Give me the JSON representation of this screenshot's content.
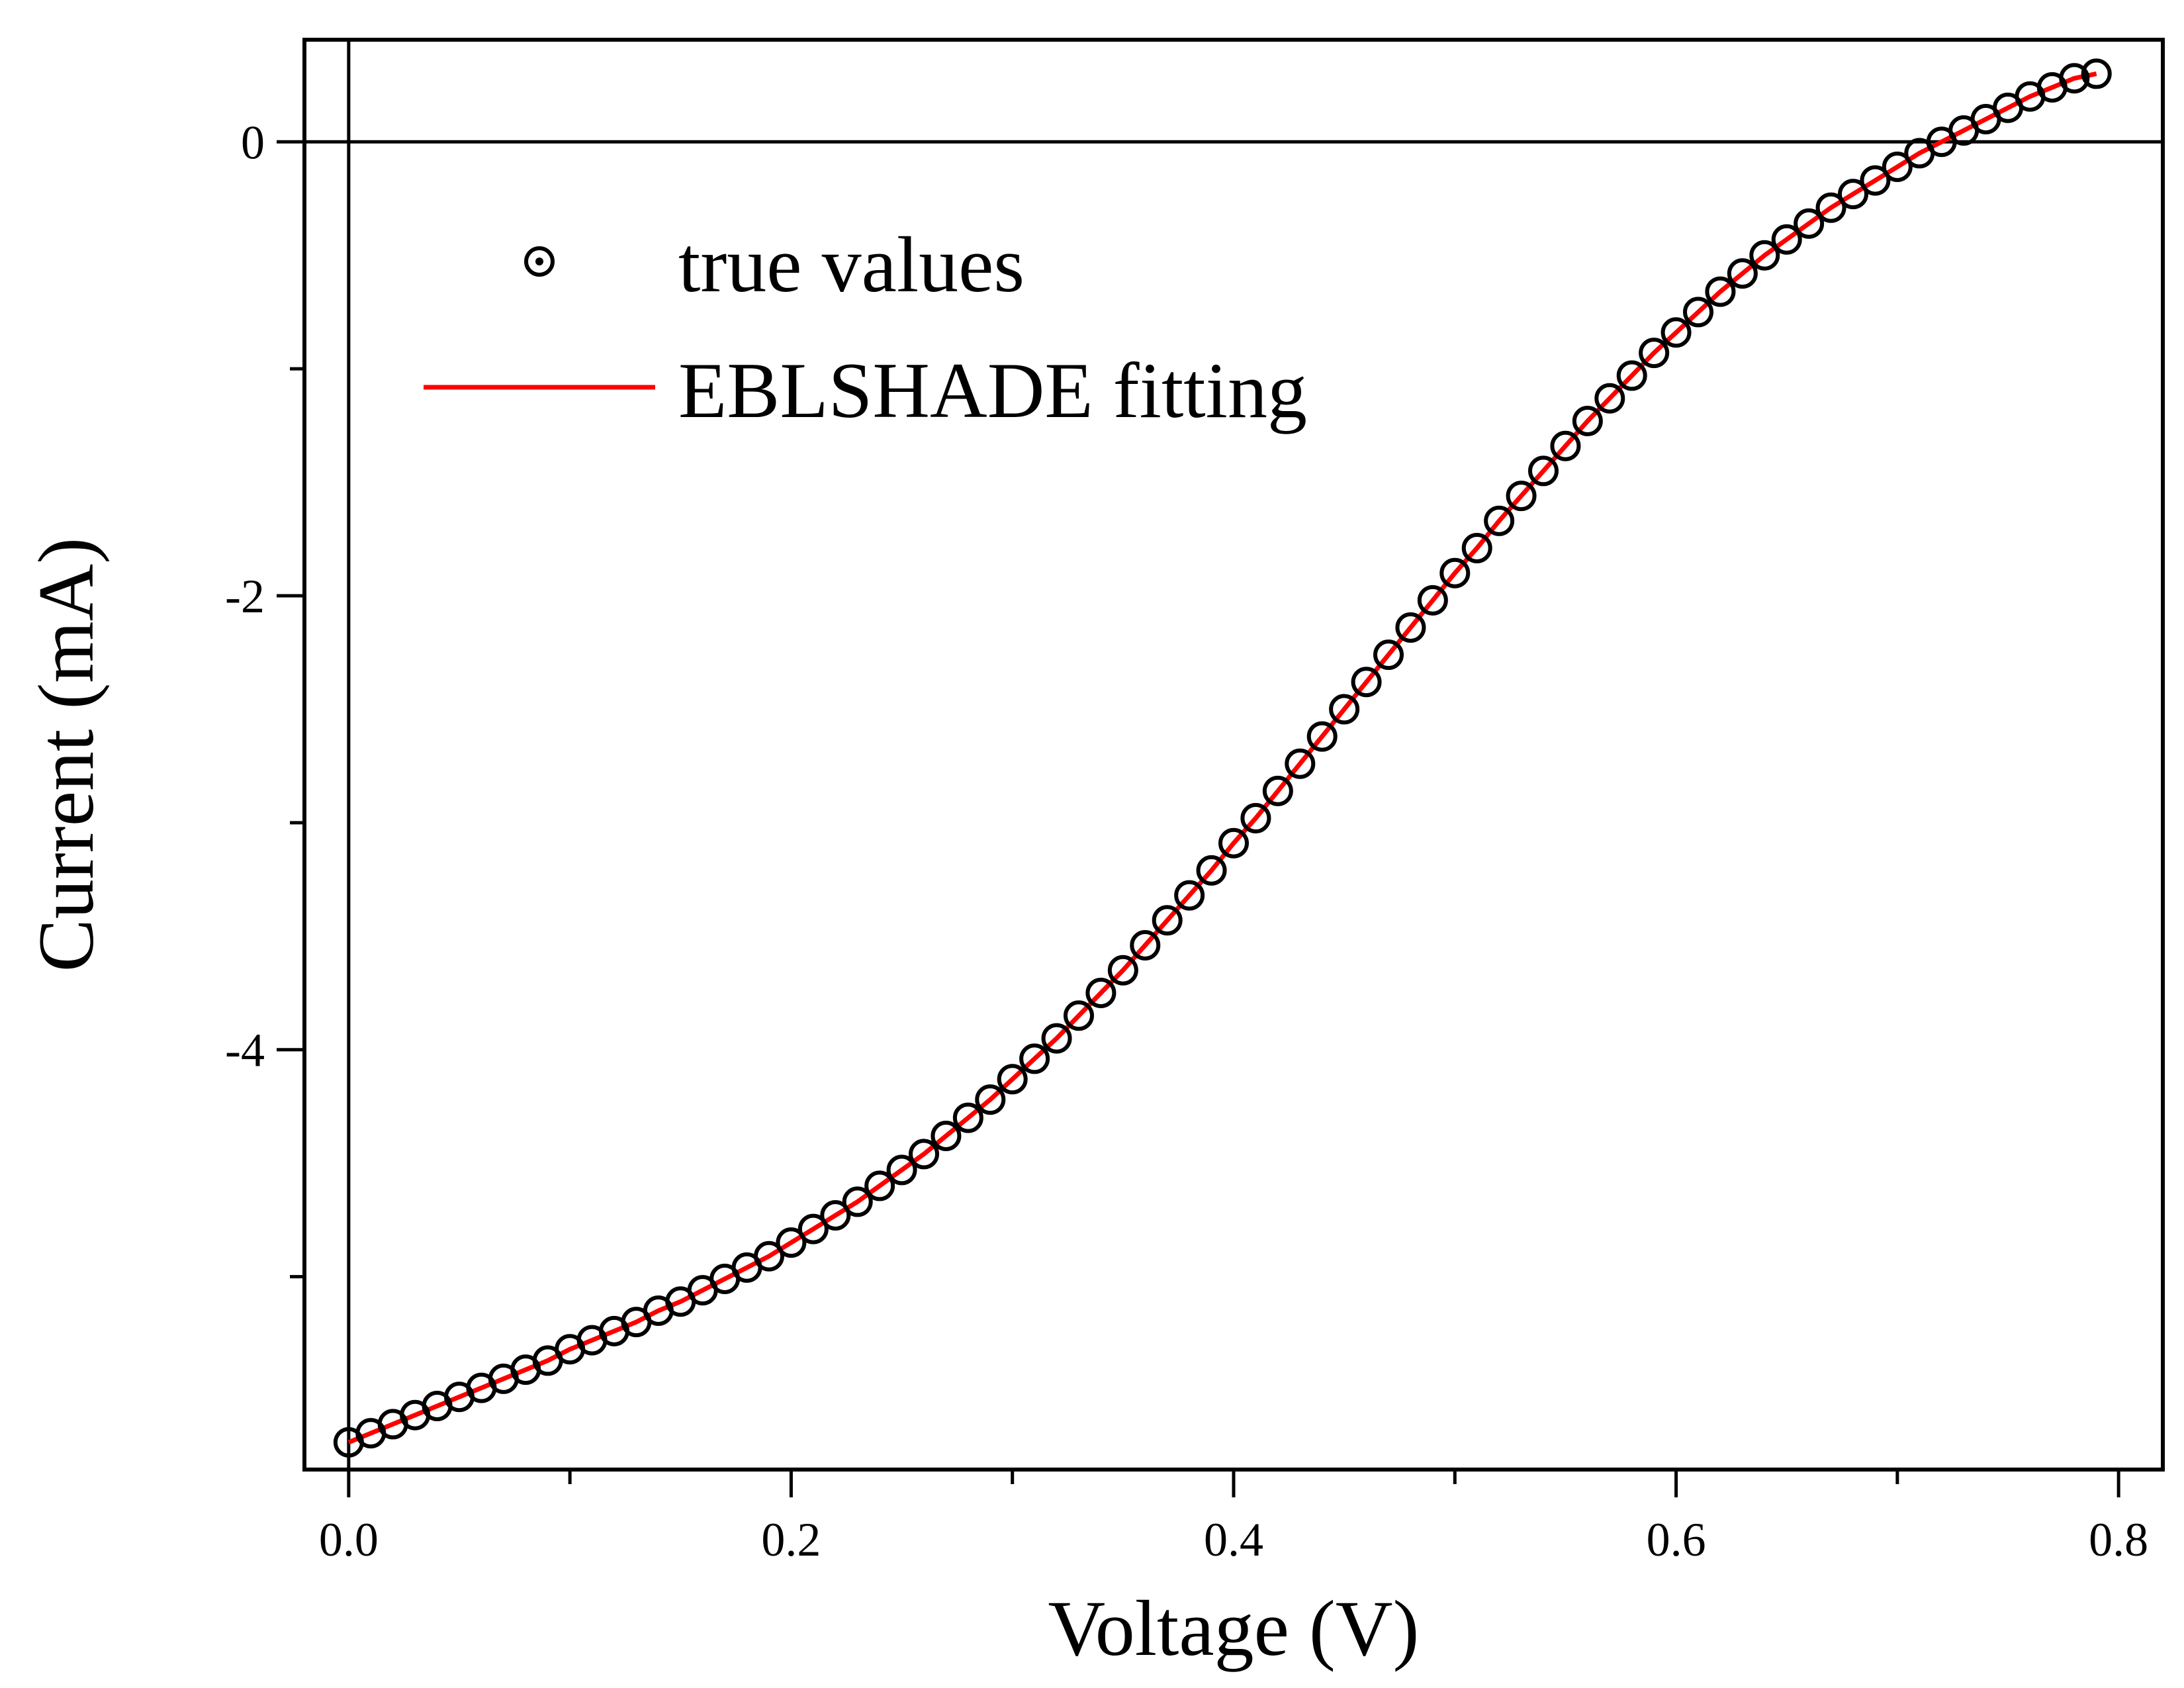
{
  "chart_data": {
    "type": "scatter",
    "xlabel": "Voltage (V)",
    "ylabel": "Current (mA)",
    "xlim": [
      -0.02,
      0.82
    ],
    "ylim": [
      -5.85,
      0.45
    ],
    "xticks": [
      0.0,
      0.2,
      0.4,
      0.6,
      0.8
    ],
    "xtick_labels": [
      "0.0",
      "0.2",
      "0.4",
      "0.6",
      "0.8"
    ],
    "yticks": [
      0,
      -2,
      -4
    ],
    "ytick_labels": [
      "0",
      "-2",
      "-4"
    ],
    "grid": false,
    "legend_position": "top-left",
    "reference_lines": {
      "x": 0,
      "y": 0
    },
    "series": [
      {
        "name": "true values",
        "style": "open-circle-marker",
        "color": "#000000",
        "x": [
          0.0,
          0.01,
          0.02,
          0.03,
          0.04,
          0.05,
          0.06,
          0.07,
          0.08,
          0.09,
          0.1,
          0.11,
          0.12,
          0.13,
          0.14,
          0.15,
          0.16,
          0.17,
          0.18,
          0.19,
          0.2,
          0.21,
          0.22,
          0.23,
          0.24,
          0.25,
          0.26,
          0.27,
          0.28,
          0.29,
          0.3,
          0.31,
          0.32,
          0.33,
          0.34,
          0.35,
          0.36,
          0.37,
          0.38,
          0.39,
          0.4,
          0.41,
          0.42,
          0.43,
          0.44,
          0.45,
          0.46,
          0.47,
          0.48,
          0.49,
          0.5,
          0.51,
          0.52,
          0.53,
          0.54,
          0.55,
          0.56,
          0.57,
          0.58,
          0.59,
          0.6,
          0.61,
          0.62,
          0.63,
          0.64,
          0.65,
          0.66,
          0.67,
          0.68,
          0.69,
          0.7,
          0.71,
          0.72,
          0.73,
          0.74,
          0.75,
          0.76,
          0.77,
          0.78,
          0.79
        ],
        "y": [
          -5.73,
          -5.69,
          -5.65,
          -5.61,
          -5.57,
          -5.53,
          -5.49,
          -5.45,
          -5.41,
          -5.37,
          -5.32,
          -5.28,
          -5.24,
          -5.2,
          -5.15,
          -5.11,
          -5.06,
          -5.01,
          -4.96,
          -4.91,
          -4.85,
          -4.79,
          -4.73,
          -4.67,
          -4.6,
          -4.53,
          -4.46,
          -4.38,
          -4.3,
          -4.22,
          -4.13,
          -4.04,
          -3.95,
          -3.85,
          -3.75,
          -3.65,
          -3.54,
          -3.43,
          -3.32,
          -3.21,
          -3.09,
          -2.98,
          -2.86,
          -2.74,
          -2.62,
          -2.5,
          -2.38,
          -2.26,
          -2.14,
          -2.02,
          -1.9,
          -1.79,
          -1.67,
          -1.56,
          -1.45,
          -1.34,
          -1.23,
          -1.13,
          -1.03,
          -0.93,
          -0.84,
          -0.75,
          -0.66,
          -0.58,
          -0.5,
          -0.43,
          -0.36,
          -0.29,
          -0.23,
          -0.17,
          -0.11,
          -0.05,
          0.0,
          0.05,
          0.1,
          0.15,
          0.2,
          0.24,
          0.28,
          0.3
        ]
      },
      {
        "name": "EBLSHADE fitting",
        "style": "line",
        "color": "#ff0000",
        "x": [
          0.0,
          0.01,
          0.02,
          0.03,
          0.04,
          0.05,
          0.06,
          0.07,
          0.08,
          0.09,
          0.1,
          0.11,
          0.12,
          0.13,
          0.14,
          0.15,
          0.16,
          0.17,
          0.18,
          0.19,
          0.2,
          0.21,
          0.22,
          0.23,
          0.24,
          0.25,
          0.26,
          0.27,
          0.28,
          0.29,
          0.3,
          0.31,
          0.32,
          0.33,
          0.34,
          0.35,
          0.36,
          0.37,
          0.38,
          0.39,
          0.4,
          0.41,
          0.42,
          0.43,
          0.44,
          0.45,
          0.46,
          0.47,
          0.48,
          0.49,
          0.5,
          0.51,
          0.52,
          0.53,
          0.54,
          0.55,
          0.56,
          0.57,
          0.58,
          0.59,
          0.6,
          0.61,
          0.62,
          0.63,
          0.64,
          0.65,
          0.66,
          0.67,
          0.68,
          0.69,
          0.7,
          0.71,
          0.72,
          0.73,
          0.74,
          0.75,
          0.76,
          0.77,
          0.78,
          0.79
        ],
        "y": [
          -5.73,
          -5.69,
          -5.65,
          -5.61,
          -5.57,
          -5.53,
          -5.49,
          -5.45,
          -5.41,
          -5.37,
          -5.32,
          -5.28,
          -5.24,
          -5.2,
          -5.15,
          -5.11,
          -5.06,
          -5.01,
          -4.96,
          -4.91,
          -4.85,
          -4.79,
          -4.73,
          -4.67,
          -4.6,
          -4.53,
          -4.46,
          -4.38,
          -4.3,
          -4.22,
          -4.13,
          -4.04,
          -3.95,
          -3.85,
          -3.75,
          -3.65,
          -3.54,
          -3.43,
          -3.32,
          -3.21,
          -3.09,
          -2.98,
          -2.86,
          -2.74,
          -2.62,
          -2.5,
          -2.38,
          -2.26,
          -2.14,
          -2.02,
          -1.9,
          -1.79,
          -1.67,
          -1.56,
          -1.45,
          -1.34,
          -1.23,
          -1.13,
          -1.03,
          -0.93,
          -0.84,
          -0.75,
          -0.66,
          -0.58,
          -0.5,
          -0.43,
          -0.36,
          -0.29,
          -0.23,
          -0.17,
          -0.11,
          -0.05,
          0.0,
          0.05,
          0.1,
          0.15,
          0.2,
          0.24,
          0.28,
          0.3
        ]
      }
    ]
  }
}
